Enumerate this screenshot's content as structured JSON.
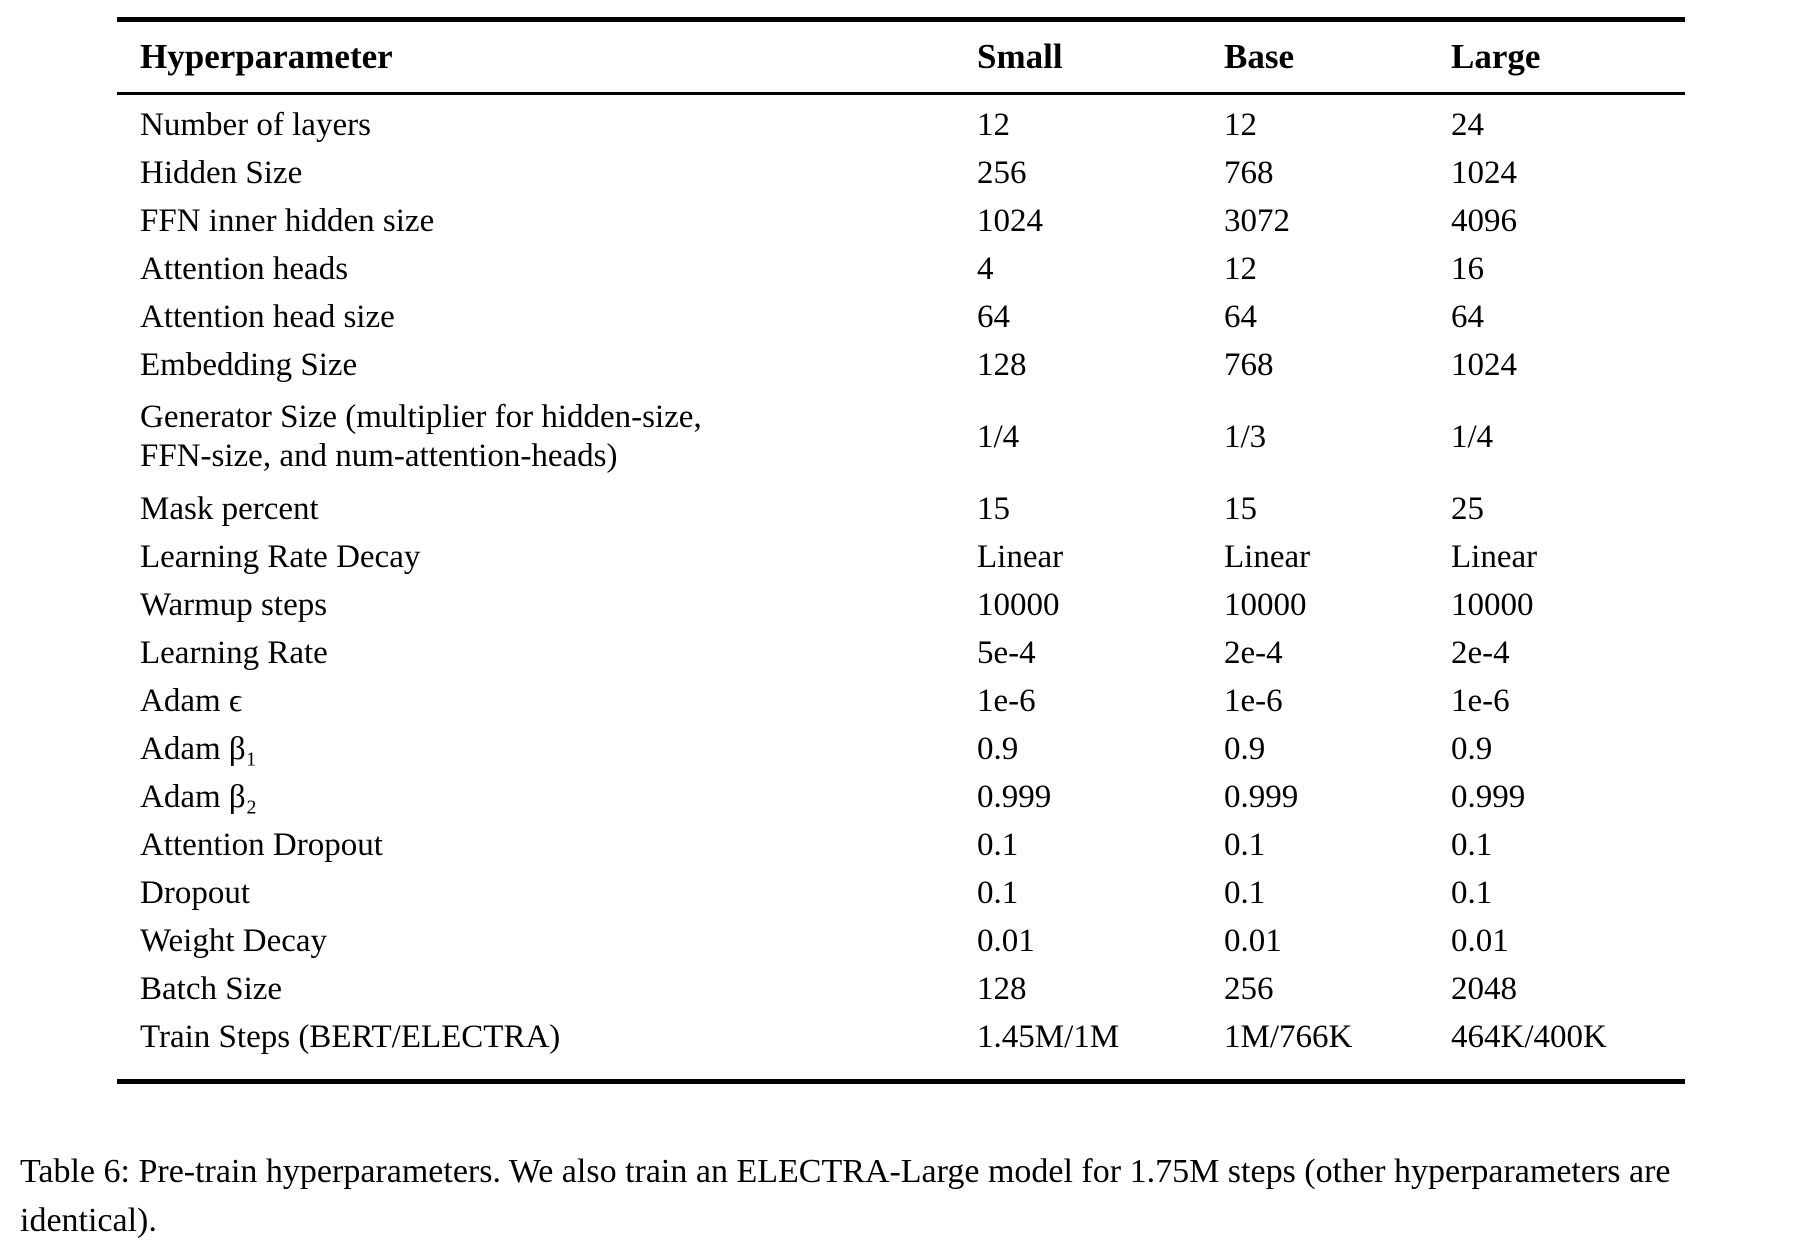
{
  "table": {
    "headers": [
      "Hyperparameter",
      "Small",
      "Base",
      "Large"
    ],
    "rows": [
      {
        "label": "Number of layers",
        "small": "12",
        "base": "12",
        "large": "24"
      },
      {
        "label": "Hidden Size",
        "small": "256",
        "base": "768",
        "large": "1024"
      },
      {
        "label": "FFN inner hidden size",
        "small": "1024",
        "base": "3072",
        "large": "4096"
      },
      {
        "label": "Attention heads",
        "small": "4",
        "base": "12",
        "large": "16"
      },
      {
        "label": "Attention head size",
        "small": "64",
        "base": "64",
        "large": "64"
      },
      {
        "label": "Embedding Size",
        "small": "128",
        "base": "768",
        "large": "1024"
      },
      {
        "label": "Generator Size (multiplier for hidden-size,\nFFN-size, and num-attention-heads)",
        "small": "1/4",
        "base": "1/3",
        "large": "1/4"
      },
      {
        "label": "Mask percent",
        "small": "15",
        "base": "15",
        "large": "25"
      },
      {
        "label": "Learning Rate Decay",
        "small": "Linear",
        "base": "Linear",
        "large": "Linear"
      },
      {
        "label": "Warmup steps",
        "small": "10000",
        "base": "10000",
        "large": "10000"
      },
      {
        "label": "Learning Rate",
        "small": "5e-4",
        "base": "2e-4",
        "large": "2e-4"
      },
      {
        "label": "Adam ϵ",
        "small": "1e-6",
        "base": "1e-6",
        "large": "1e-6"
      },
      {
        "label": "Adam β₁",
        "small": "0.9",
        "base": "0.9",
        "large": "0.9"
      },
      {
        "label": "Adam β₂",
        "small": "0.999",
        "base": "0.999",
        "large": "0.999"
      },
      {
        "label": "Attention Dropout",
        "small": "0.1",
        "base": "0.1",
        "large": "0.1"
      },
      {
        "label": "Dropout",
        "small": "0.1",
        "base": "0.1",
        "large": "0.1"
      },
      {
        "label": "Weight Decay",
        "small": "0.01",
        "base": "0.01",
        "large": "0.01"
      },
      {
        "label": "Batch Size",
        "small": "128",
        "base": "256",
        "large": "2048"
      },
      {
        "label": "Train Steps (BERT/ELECTRA)",
        "small": "1.45M/1M",
        "base": "1M/766K",
        "large": "464K/400K"
      }
    ]
  },
  "caption": "Table 6: Pre-train hyperparameters. We also train an ELECTRA-Large model for 1.75M steps (other hyperparameters are identical)."
}
